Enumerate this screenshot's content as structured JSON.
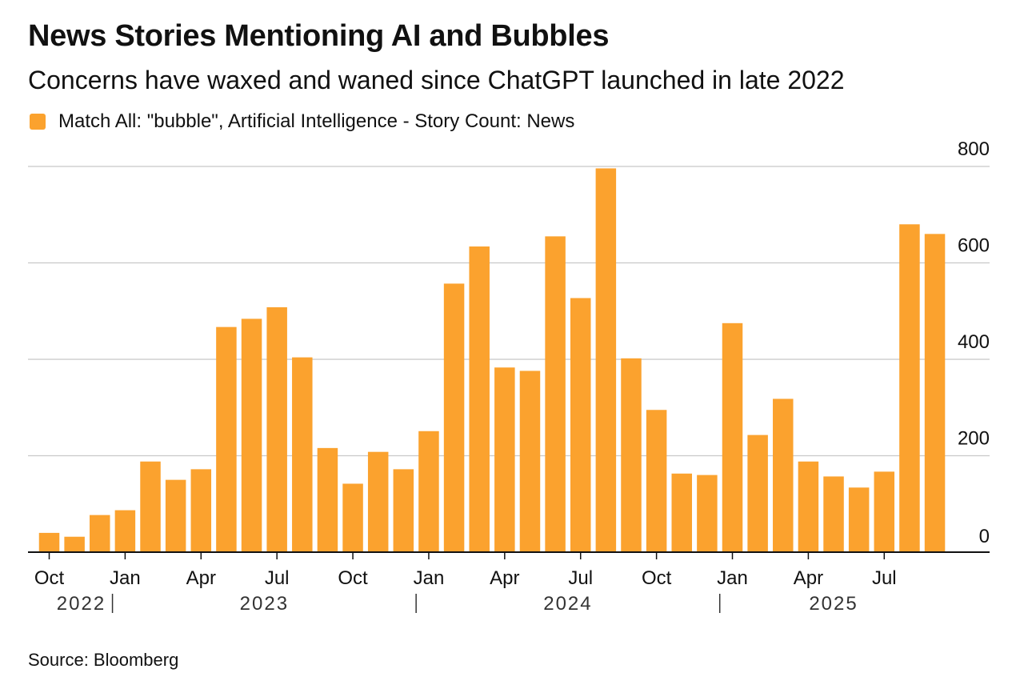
{
  "header": {
    "title": "News Stories Mentioning AI and Bubbles",
    "subtitle": "Concerns have waxed and waned since ChatGPT launched in late 2022"
  },
  "legend": {
    "label": "Match All: \"bubble\", Artificial Intelligence - Story Count: News"
  },
  "footer": {
    "source": "Source: Bloomberg"
  },
  "colors": {
    "bar": "#FBA22E",
    "grid": "#c8c8c8",
    "axis": "#111111",
    "text": "#111111"
  },
  "chart_data": {
    "type": "bar",
    "title": "News Stories Mentioning AI and Bubbles",
    "xlabel": "",
    "ylabel": "",
    "ylim": [
      0,
      800
    ],
    "yticks": [
      0,
      200,
      400,
      600,
      800
    ],
    "y_axis_position": "right",
    "legend_position": "top-left",
    "grid": true,
    "categories": [
      "Oct 2022",
      "Nov 2022",
      "Dec 2022",
      "Jan 2023",
      "Feb 2023",
      "Mar 2023",
      "Apr 2023",
      "May 2023",
      "Jun 2023",
      "Jul 2023",
      "Aug 2023",
      "Sep 2023",
      "Oct 2023",
      "Nov 2023",
      "Dec 2023",
      "Jan 2024",
      "Feb 2024",
      "Mar 2024",
      "Apr 2024",
      "May 2024",
      "Jun 2024",
      "Jul 2024",
      "Aug 2024",
      "Sep 2024",
      "Oct 2024",
      "Nov 2024",
      "Dec 2024",
      "Jan 2025",
      "Feb 2025",
      "Mar 2025",
      "Apr 2025",
      "May 2025",
      "Jun 2025",
      "Jul 2025",
      "Aug 2025",
      "Sep 2025"
    ],
    "series": [
      {
        "name": "Match All: \"bubble\", Artificial Intelligence - Story Count: News",
        "values": [
          40,
          32,
          77,
          87,
          188,
          150,
          172,
          467,
          484,
          508,
          404,
          216,
          142,
          208,
          172,
          251,
          557,
          634,
          383,
          376,
          655,
          527,
          796,
          402,
          295,
          163,
          160,
          475,
          243,
          318,
          188,
          157,
          134,
          167,
          680,
          660
        ]
      }
    ],
    "x_tick_labels": [
      {
        "index": 0,
        "label": "Oct"
      },
      {
        "index": 3,
        "label": "Jan"
      },
      {
        "index": 6,
        "label": "Apr"
      },
      {
        "index": 9,
        "label": "Jul"
      },
      {
        "index": 12,
        "label": "Oct"
      },
      {
        "index": 15,
        "label": "Jan"
      },
      {
        "index": 18,
        "label": "Apr"
      },
      {
        "index": 21,
        "label": "Jul"
      },
      {
        "index": 24,
        "label": "Oct"
      },
      {
        "index": 27,
        "label": "Jan"
      },
      {
        "index": 30,
        "label": "Apr"
      },
      {
        "index": 33,
        "label": "Jul"
      }
    ],
    "year_labels": [
      {
        "label": "2022",
        "start_index": 0,
        "end_index": 2
      },
      {
        "label": "2023",
        "start_index": 3,
        "end_index": 14
      },
      {
        "label": "2024",
        "start_index": 15,
        "end_index": 26
      },
      {
        "label": "2025",
        "start_index": 27,
        "end_index": 35
      }
    ]
  }
}
